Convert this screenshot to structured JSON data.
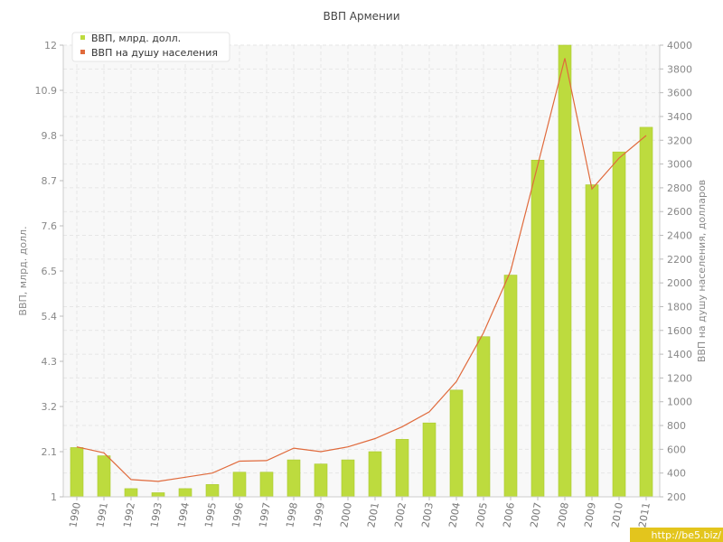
{
  "chart_data": {
    "type": "bar",
    "title": "ВВП Армении",
    "ylabel": "ВВП, млрд. долл.",
    "y2label": "ВВП на душу населения, долларов",
    "ylim": [
      1,
      12
    ],
    "y2lim": [
      200,
      4000
    ],
    "yticks": [
      "1",
      "2.1",
      "3.2",
      "4.3",
      "5.4",
      "6.5",
      "7.6",
      "8.7",
      "9.8",
      "10.9",
      "12"
    ],
    "y2ticks": [
      "200",
      "400",
      "600",
      "800",
      "1000",
      "1200",
      "1400",
      "1600",
      "1800",
      "2000",
      "2200",
      "2400",
      "2600",
      "2800",
      "3000",
      "3200",
      "3400",
      "3600",
      "3800",
      "4000"
    ],
    "categories": [
      "1990",
      "1991",
      "1992",
      "1993",
      "1994",
      "1995",
      "1996",
      "1997",
      "1998",
      "1999",
      "2000",
      "2001",
      "2002",
      "2003",
      "2004",
      "2005",
      "2006",
      "2007",
      "2008",
      "2009",
      "2010",
      "2011"
    ],
    "series": [
      {
        "name": "ВВП, млрд. долл.",
        "type": "bar",
        "axis": "left",
        "color": "#bddb3e",
        "values": [
          2.2,
          2.0,
          1.2,
          1.1,
          1.2,
          1.3,
          1.6,
          1.6,
          1.9,
          1.8,
          1.9,
          2.1,
          2.4,
          2.8,
          3.6,
          4.9,
          6.4,
          9.2,
          12.1,
          8.6,
          9.4,
          10.0
        ]
      },
      {
        "name": "ВВП на душу населения",
        "type": "line",
        "axis": "right",
        "color": "#e06a3c",
        "values": [
          620,
          570,
          345,
          330,
          365,
          400,
          500,
          505,
          610,
          580,
          620,
          690,
          790,
          915,
          1170,
          1580,
          2100,
          2990,
          3890,
          2790,
          3050,
          3240
        ]
      }
    ],
    "legend": "top-left",
    "grid": true
  },
  "watermark": "http://be5.biz/"
}
